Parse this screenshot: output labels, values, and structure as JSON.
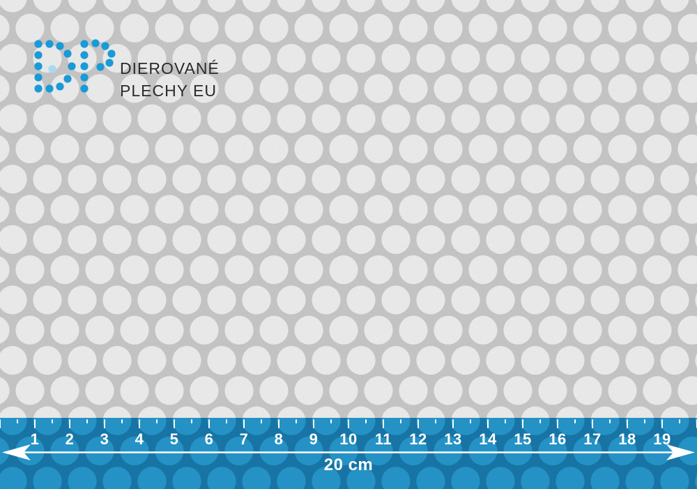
{
  "brand": {
    "monogram": "DP",
    "name_line1": "DIEROVANÉ",
    "name_line2": "PLECHY EU"
  },
  "ruler": {
    "unit_numbers": [
      "1",
      "2",
      "3",
      "4",
      "5",
      "6",
      "7",
      "8",
      "9",
      "10",
      "11",
      "12",
      "13",
      "14",
      "15",
      "16",
      "17",
      "18",
      "19"
    ],
    "span_label": "20 cm"
  },
  "colors": {
    "metal": "#d7d7d8",
    "hole": "#ffffff",
    "ruler_base": "#1a80b6",
    "ruler_hole": "#29a1d9",
    "logo_blue": "#1a9ad8",
    "logo_pale": "#a8d9f2",
    "text_dark": "#2b2b2b",
    "tick_white": "#ffffff"
  }
}
